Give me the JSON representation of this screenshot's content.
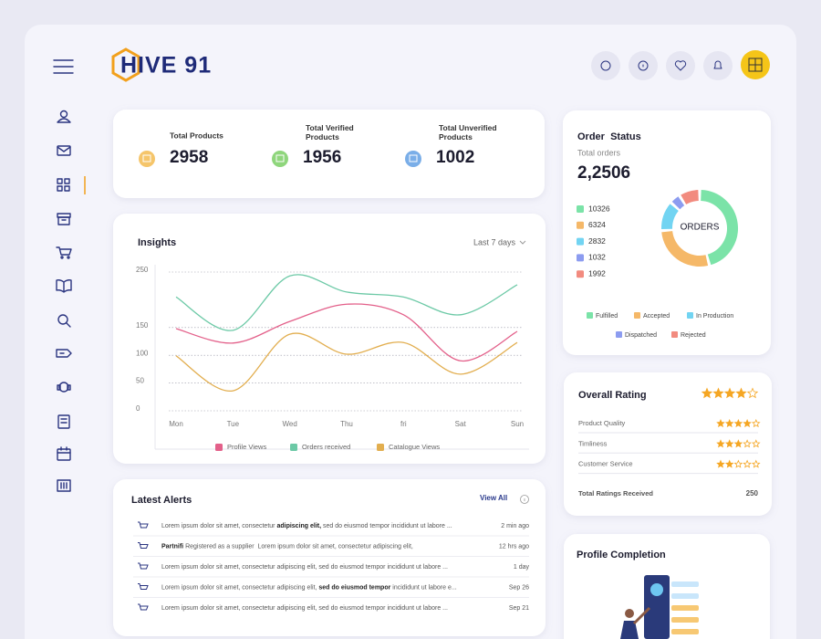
{
  "brand": "HIVE 91",
  "stats": [
    {
      "label": "Total Products",
      "value": 2958
    },
    {
      "label": "Total Verified Products",
      "value": 1956
    },
    {
      "label": "Total Unverified Products",
      "value": 1002
    }
  ],
  "insights": {
    "type": "line",
    "title": "Insights",
    "range": "Last 7 days",
    "categories": [
      "Mon",
      "Tue",
      "Wed",
      "Thu",
      "fri",
      "Sat",
      "Sun"
    ],
    "series": [
      {
        "name": "Profile Views",
        "color": "#e3608a",
        "values": [
          148,
          122,
          161,
          192,
          173,
          90,
          143
        ]
      },
      {
        "name": "Orders received",
        "color": "#6cc9a6",
        "values": [
          205,
          145,
          243,
          214,
          205,
          173,
          227
        ]
      },
      {
        "name": "Catalogue Views",
        "color": "#e2ae4f",
        "values": [
          99,
          36,
          138,
          102,
          123,
          66,
          123
        ]
      }
    ],
    "ylim": [
      0,
      250
    ],
    "yticks": [
      0,
      50,
      100,
      150,
      250
    ],
    "grid": true
  },
  "order_status": {
    "type": "donut",
    "title": "Order  Status",
    "subtitle": "Total orders",
    "total": "2,2506",
    "center_label": "ORDERS",
    "categories": [
      "Fulfilled",
      "Accepted",
      "In Production",
      "Dispatched",
      "Rejected"
    ],
    "values": [
      10326,
      6324,
      2832,
      1032,
      1992
    ],
    "colors": [
      "#7be3a8",
      "#f5b868",
      "#72d4f2",
      "#8c9cf0",
      "#f28b7f"
    ]
  },
  "rating": {
    "title": "Overall Rating",
    "stars_max": 5,
    "overall": 4,
    "items": [
      {
        "label": "Product Quality",
        "stars": 4
      },
      {
        "label": "Timliness",
        "stars": 3
      },
      {
        "label": "Customer Service",
        "stars": 2
      }
    ],
    "total_label": "Total Ratings Received",
    "total": 250
  },
  "alerts": {
    "title": "Latest Alerts",
    "action": "View All",
    "rows": [
      {
        "parts": [
          {
            "text": "Lorem ipsum dolor sit amet, consectetur ",
            "bold": false
          },
          {
            "text": "adipiscing elit,",
            "bold": true
          },
          {
            "text": " sed do eiusmod tempor incididunt ut labore ...",
            "bold": false
          }
        ],
        "time": "2 min ago"
      },
      {
        "parts": [
          {
            "text": "Partnifi",
            "bold": true
          },
          {
            "text": " Registered as a supplier  Lorem ipsum dolor sit amet, consectetur adipiscing elit,",
            "bold": false
          }
        ],
        "time": "12 hrs ago"
      },
      {
        "parts": [
          {
            "text": "Lorem ipsum dolor sit amet, consectetur adipiscing elit, sed do eiusmod tempor incididunt ut labore ...",
            "bold": false
          }
        ],
        "time": "1 day"
      },
      {
        "parts": [
          {
            "text": "Lorem ipsum dolor sit amet, consectetur adipiscing elit, ",
            "bold": false
          },
          {
            "text": "sed do eiusmod tempor",
            "bold": true
          },
          {
            "text": " incididunt ut labore e...",
            "bold": false
          }
        ],
        "time": "Sep 26"
      },
      {
        "parts": [
          {
            "text": "Lorem ipsum dolor sit amet, consectetur adipiscing elit, sed do eiusmod tempor incididunt ut labore ...",
            "bold": false
          }
        ],
        "time": "Sep 21"
      }
    ]
  },
  "profile": {
    "title": "Profile Completion"
  }
}
